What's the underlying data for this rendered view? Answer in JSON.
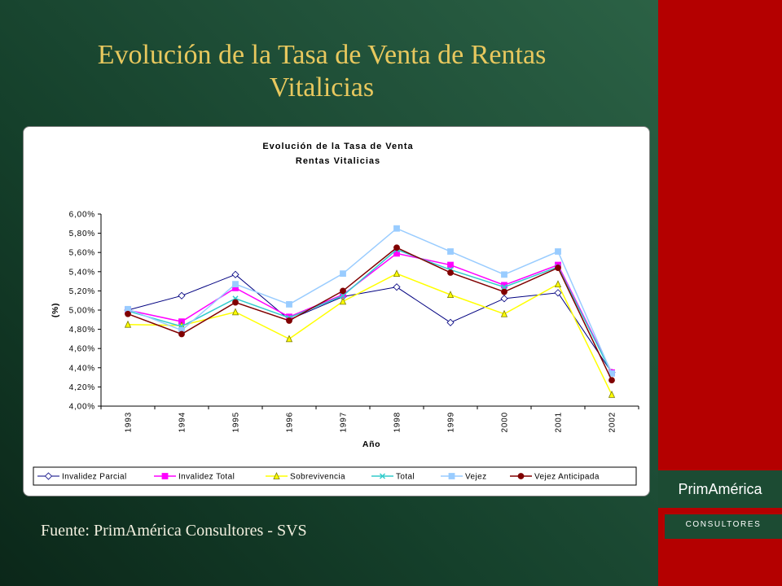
{
  "slide": {
    "title": "Evolución de la Tasa de Venta de Rentas Vitalicias",
    "source": "Fuente: PrimAmérica Consultores - SVS"
  },
  "brand": {
    "name": "PrimAmérica",
    "tagline": "CONSULTORES"
  },
  "theme": {
    "accent_color": "#b40000",
    "title_color": "#e8c85e",
    "panel_color": "#1c4b33"
  },
  "chart_data": {
    "type": "line",
    "title": "Evolución de la Tasa de Venta",
    "subtitle": "Rentas Vitalicias",
    "xlabel": "Año",
    "ylabel": "(%)",
    "x": [
      "1993",
      "1994",
      "1995",
      "1996",
      "1997",
      "1998",
      "1999",
      "2000",
      "2001",
      "2002"
    ],
    "ylim": [
      4.0,
      6.0
    ],
    "yticks": [
      4.0,
      4.2,
      4.4,
      4.6,
      4.8,
      5.0,
      5.2,
      5.4,
      5.6,
      5.8,
      6.0
    ],
    "ytick_labels": [
      "4,00%",
      "4,20%",
      "4,40%",
      "4,60%",
      "4,80%",
      "5,00%",
      "5,20%",
      "5,40%",
      "5,60%",
      "5,80%",
      "6,00%"
    ],
    "grid": false,
    "legend": "bottom",
    "series": [
      {
        "name": "Invalidez Parcial",
        "color": "#000080",
        "marker": "diamond",
        "marker_fill": "#ffffff",
        "marker_stroke": "#000080",
        "values": [
          5.0,
          5.15,
          5.37,
          4.9,
          5.14,
          5.24,
          4.87,
          5.12,
          5.18,
          4.35
        ]
      },
      {
        "name": "Invalidez Total",
        "color": "#ff00ff",
        "marker": "square",
        "marker_fill": "#ff00ff",
        "marker_stroke": "#ff00ff",
        "values": [
          5.0,
          4.88,
          5.23,
          4.93,
          5.16,
          5.59,
          5.47,
          5.26,
          5.47,
          4.35
        ]
      },
      {
        "name": "Sobrevivencia",
        "color": "#ffff00",
        "marker": "triangle",
        "marker_fill": "#ffff00",
        "marker_stroke": "#7a7a00",
        "values": [
          4.85,
          4.84,
          4.98,
          4.7,
          5.09,
          5.38,
          5.16,
          4.96,
          5.27,
          4.12
        ]
      },
      {
        "name": "Total",
        "color": "#33cccc",
        "marker": "x",
        "marker_fill": "none",
        "marker_stroke": "#33cccc",
        "values": [
          4.99,
          4.83,
          5.12,
          4.92,
          5.15,
          5.63,
          5.42,
          5.24,
          5.45,
          4.34
        ]
      },
      {
        "name": "Vejez",
        "color": "#99ccff",
        "marker": "square",
        "marker_fill": "#99ccff",
        "marker_stroke": "#99ccff",
        "values": [
          5.01,
          4.79,
          5.27,
          5.06,
          5.38,
          5.85,
          5.61,
          5.37,
          5.61,
          4.34
        ]
      },
      {
        "name": "Vejez Anticipada",
        "color": "#800000",
        "marker": "circle",
        "marker_fill": "#800000",
        "marker_stroke": "#800000",
        "values": [
          4.96,
          4.75,
          5.08,
          4.89,
          5.2,
          5.65,
          5.39,
          5.19,
          5.44,
          4.27
        ]
      }
    ]
  }
}
